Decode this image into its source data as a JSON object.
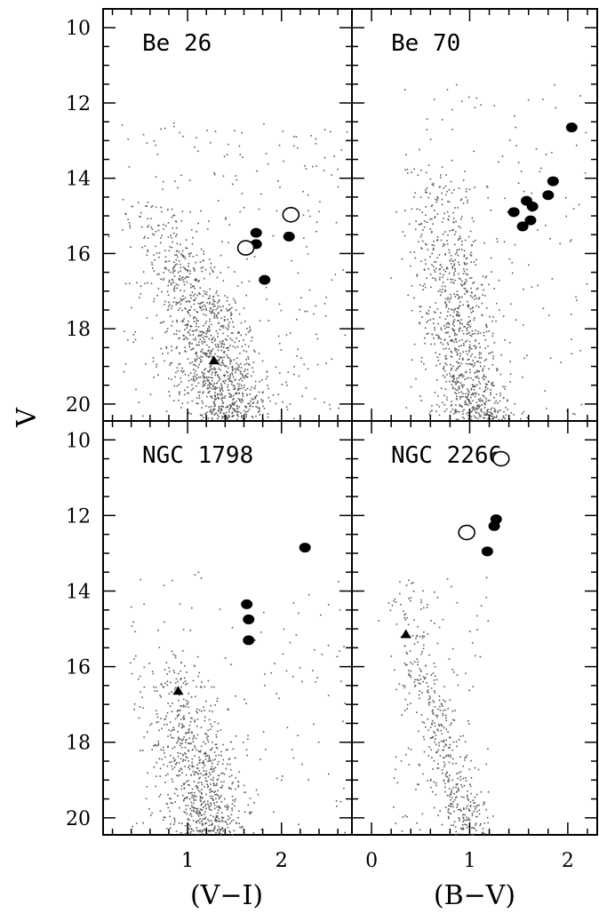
{
  "chart_data": [
    {
      "type": "scatter",
      "title": "Be 26",
      "xlabel": "(V−I)",
      "ylabel": "V",
      "xlim": [
        0.1,
        2.75
      ],
      "ylim": [
        20.45,
        9.5
      ],
      "y_inverted": true,
      "xticks": [
        "1",
        "2"
      ],
      "yticks": [
        "10",
        "12",
        "14",
        "16",
        "18",
        "20"
      ],
      "series": [
        {
          "marker": "filled-circle",
          "points": [
            [
              1.73,
              15.45
            ],
            [
              1.73,
              15.75
            ],
            [
              1.82,
              16.7
            ],
            [
              2.08,
              15.55
            ]
          ]
        },
        {
          "marker": "open-circle",
          "points": [
            [
              1.62,
              15.85
            ],
            [
              2.1,
              14.97
            ]
          ]
        },
        {
          "marker": "filled-triangle",
          "points": [
            [
              1.28,
              18.85
            ]
          ]
        },
        {
          "marker": "field-dots",
          "cloud": "main sequence field stars",
          "approx_count": 1400
        }
      ]
    },
    {
      "type": "scatter",
      "title": "Be 70",
      "xlabel": "(B−V)",
      "ylabel": "V",
      "xlim": [
        -0.2,
        2.3
      ],
      "ylim": [
        20.45,
        9.5
      ],
      "y_inverted": true,
      "xticks": [],
      "yticks": [],
      "series": [
        {
          "marker": "filled-circle",
          "points": [
            [
              1.45,
              14.9
            ],
            [
              1.54,
              15.28
            ],
            [
              1.58,
              14.6
            ],
            [
              1.62,
              15.12
            ],
            [
              1.64,
              14.75
            ],
            [
              1.8,
              14.45
            ],
            [
              1.85,
              14.08
            ],
            [
              2.04,
              12.65
            ]
          ]
        },
        {
          "marker": "field-dots",
          "cloud": "main sequence field stars",
          "approx_count": 1100
        }
      ]
    },
    {
      "type": "scatter",
      "title": "NGC 1798",
      "xlabel": "(V−I)",
      "ylabel": "V",
      "xlim": [
        0.1,
        2.75
      ],
      "ylim": [
        20.45,
        9.5
      ],
      "y_inverted": true,
      "xticks": [
        "1",
        "2"
      ],
      "yticks": [
        "10",
        "12",
        "14",
        "16",
        "18",
        "20"
      ],
      "series": [
        {
          "marker": "filled-circle",
          "points": [
            [
              1.63,
              14.35
            ],
            [
              1.65,
              14.75
            ],
            [
              1.65,
              15.3
            ],
            [
              2.25,
              12.85
            ]
          ]
        },
        {
          "marker": "filled-triangle",
          "points": [
            [
              0.9,
              16.65
            ]
          ]
        },
        {
          "marker": "field-dots",
          "cloud": "main sequence field stars",
          "approx_count": 900
        }
      ]
    },
    {
      "type": "scatter",
      "title": "NGC 2266",
      "xlabel": "(B−V)",
      "ylabel": "V",
      "xlim": [
        -0.2,
        2.3
      ],
      "ylim": [
        20.45,
        9.5
      ],
      "y_inverted": true,
      "xticks": [
        "0",
        "1",
        "2"
      ],
      "yticks": [],
      "series": [
        {
          "marker": "filled-circle",
          "points": [
            [
              1.27,
              12.1
            ],
            [
              1.25,
              12.28
            ],
            [
              1.18,
              12.95
            ]
          ]
        },
        {
          "marker": "open-circle",
          "points": [
            [
              0.97,
              12.45
            ],
            [
              1.32,
              10.5
            ]
          ]
        },
        {
          "marker": "filled-triangle",
          "points": [
            [
              0.35,
              15.15
            ]
          ]
        },
        {
          "marker": "field-dots",
          "cloud": "main sequence field stars",
          "approx_count": 520
        }
      ]
    }
  ],
  "axes": {
    "y_title": "V",
    "x_title_left": "(V−I)",
    "x_title_right": "(B−V)"
  },
  "colors": {
    "axes": "#000000",
    "field_dots": "#5a5a5a",
    "markers": "#000000"
  }
}
